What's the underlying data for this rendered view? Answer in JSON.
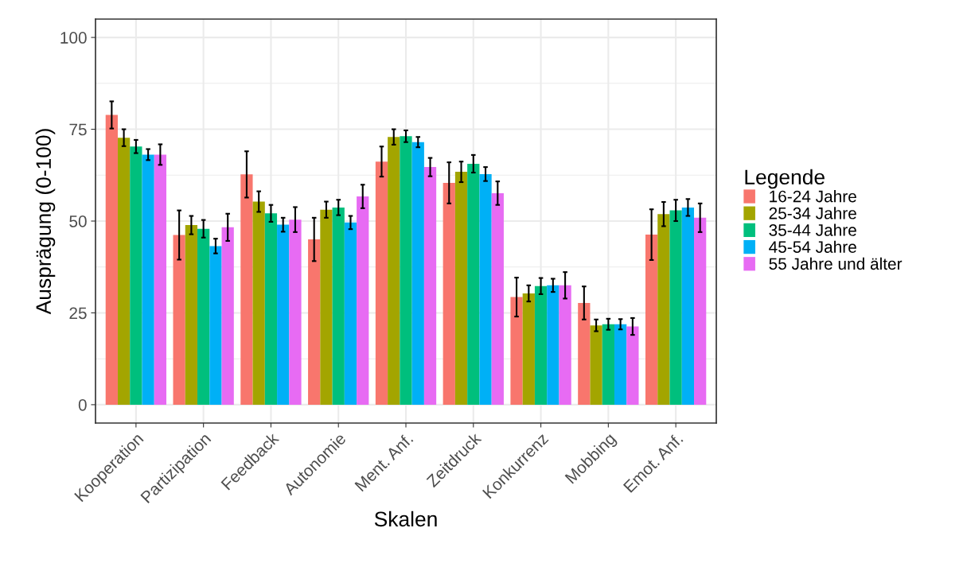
{
  "chart_data": {
    "type": "bar",
    "xlabel": "Skalen",
    "ylabel": "Ausprägung (0-100)",
    "legend_title": "Legende",
    "legend": "right",
    "grid": true,
    "categories": [
      "Kooperation",
      "Partizipation",
      "Feedback",
      "Autonomie",
      "Ment. Anf.",
      "Zeitdruck",
      "Konkurrenz",
      "Mobbing",
      "Emot. Anf."
    ],
    "ylim": [
      -5,
      105
    ],
    "yticks": [
      0,
      25,
      50,
      75,
      100
    ],
    "series": [
      {
        "name": "16-24 Jahre",
        "color": "#f8766d",
        "values": [
          78.9,
          46.2,
          62.7,
          45.0,
          66.2,
          60.4,
          29.3,
          27.7,
          46.3
        ],
        "errors": [
          3.7,
          6.7,
          6.3,
          5.9,
          4.1,
          5.6,
          5.3,
          4.5,
          6.9
        ]
      },
      {
        "name": "25-34 Jahre",
        "color": "#a3a500",
        "values": [
          72.7,
          48.9,
          55.3,
          53.1,
          72.9,
          63.4,
          30.3,
          21.6,
          51.9
        ],
        "errors": [
          2.3,
          2.5,
          2.8,
          2.2,
          2.1,
          2.8,
          2.2,
          1.6,
          3.3
        ]
      },
      {
        "name": "35-44 Jahre",
        "color": "#00bf7d",
        "values": [
          70.3,
          47.9,
          52.1,
          53.7,
          73.1,
          65.6,
          32.3,
          21.9,
          52.9
        ],
        "errors": [
          1.8,
          2.4,
          2.3,
          2.1,
          1.6,
          2.4,
          2.2,
          1.5,
          2.9
        ]
      },
      {
        "name": "45-54 Jahre",
        "color": "#00b0f6",
        "values": [
          68.1,
          43.2,
          49.0,
          49.6,
          71.5,
          62.8,
          32.5,
          21.9,
          53.7
        ],
        "errors": [
          1.5,
          2.0,
          1.9,
          1.8,
          1.4,
          1.9,
          1.8,
          1.4,
          2.3
        ]
      },
      {
        "name": "55 Jahre und älter",
        "color": "#e76bf3",
        "values": [
          68.1,
          48.3,
          50.4,
          56.7,
          64.7,
          57.6,
          32.5,
          21.3,
          50.9
        ],
        "errors": [
          2.8,
          3.7,
          3.4,
          3.2,
          2.5,
          3.2,
          3.6,
          2.3,
          3.9
        ]
      }
    ]
  }
}
